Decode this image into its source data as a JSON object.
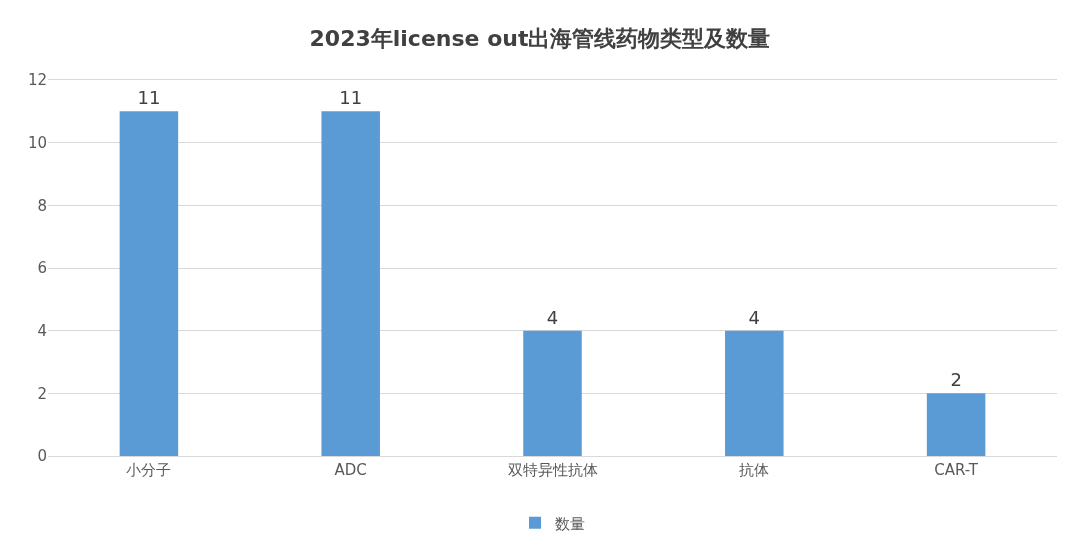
{
  "chart_data": {
    "type": "bar",
    "title": "2023年license out出海管线药物类型及数量",
    "categories": [
      "小分子",
      "ADC",
      "双特异性抗体",
      "抗体",
      "CAR-T"
    ],
    "series": [
      {
        "name": "数量",
        "color": "#5b9bd5",
        "values": [
          11,
          11,
          4,
          4,
          2
        ]
      }
    ],
    "ylim": [
      0,
      12
    ],
    "yticks": [
      0,
      2,
      4,
      6,
      8,
      10,
      12
    ],
    "grid": "y",
    "legend": "bottom",
    "data_labels": true
  }
}
